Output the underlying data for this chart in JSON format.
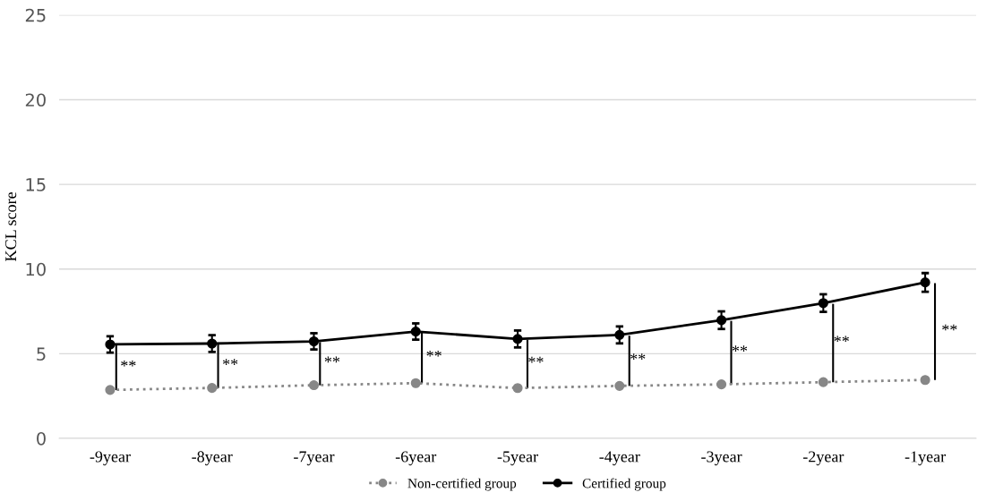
{
  "chart_data": {
    "type": "line",
    "ylabel": "KCL score",
    "categories": [
      "-9year",
      "-8year",
      "-7year",
      "-6year",
      "-5year",
      "-4year",
      "-3year",
      "-2year",
      "-1year"
    ],
    "series": [
      {
        "name": "Non-certified group",
        "color": "#878787",
        "line_style": "dotted",
        "marker": "circle",
        "values": [
          2.86,
          2.98,
          3.14,
          3.26,
          2.97,
          3.1,
          3.19,
          3.32,
          3.45
        ]
      },
      {
        "name": "Certified group",
        "color": "#000000",
        "line_style": "solid",
        "marker": "circle",
        "values": [
          5.55,
          5.6,
          5.73,
          6.31,
          5.87,
          6.11,
          6.98,
          7.99,
          9.21
        ],
        "errors": [
          0.48,
          0.5,
          0.48,
          0.48,
          0.5,
          0.5,
          0.52,
          0.52,
          0.55
        ]
      }
    ],
    "annotations": [
      {
        "text": "**",
        "x": "-9year",
        "y": 5.55
      },
      {
        "text": "**",
        "x": "-8year",
        "y": 5.6
      },
      {
        "text": "**",
        "x": "-7year",
        "y": 5.73
      },
      {
        "text": "**",
        "x": "-6year",
        "y": 6.31
      },
      {
        "text": "**",
        "x": "-5year",
        "y": 5.87
      },
      {
        "text": "**",
        "x": "-4year",
        "y": 6.11
      },
      {
        "text": "**",
        "x": "-3year",
        "y": 6.98
      },
      {
        "text": "**",
        "x": "-2year",
        "y": 7.99
      },
      {
        "text": "**",
        "x": "-1year",
        "y": 9.21
      }
    ],
    "ylim": [
      0,
      25
    ],
    "yticks": [
      0,
      5,
      10,
      15,
      20,
      25
    ],
    "grid": "y",
    "legend": "bottom"
  }
}
